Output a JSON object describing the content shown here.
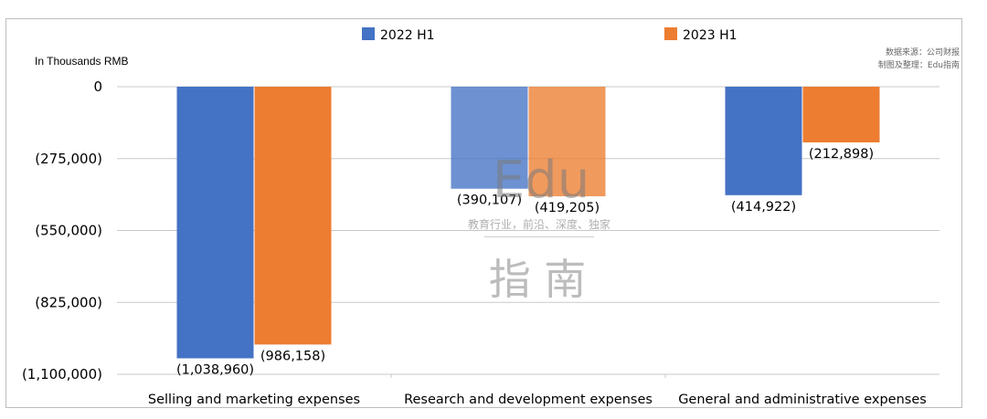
{
  "chart_data": {
    "type": "bar",
    "categories": [
      "Selling and marketing expenses",
      "Research and development expenses",
      "General and administrative expenses"
    ],
    "series": [
      {
        "name": "2022 H1",
        "color": "#4472c4",
        "values": [
          -1038960,
          -390107,
          -414922
        ]
      },
      {
        "name": "2023 H1",
        "color": "#ed7d31",
        "values": [
          -986158,
          -419205,
          -212898
        ]
      }
    ],
    "value_labels": [
      [
        "(1,038,960)",
        "(390,107)",
        "(414,922)"
      ],
      [
        "(986,158)",
        "(419,205)",
        "(212,898)"
      ]
    ],
    "ylabel": "In Thousands RMB",
    "ylim": [
      -1100000,
      0
    ],
    "yticks": [
      0,
      -275000,
      -550000,
      -825000,
      -1100000
    ],
    "ytick_labels": [
      "0",
      "(275,000)",
      "(550,000)",
      "(825,000)",
      "(1,100,000)"
    ],
    "legend_position": "top-center",
    "grid": true
  },
  "source_note": [
    "数据来源：公司财报",
    "制图及整理：Edu指南"
  ],
  "watermark": {
    "logo": "Edu",
    "tagline": "教育行业，前沿、深度、独家",
    "name": "指 南"
  }
}
